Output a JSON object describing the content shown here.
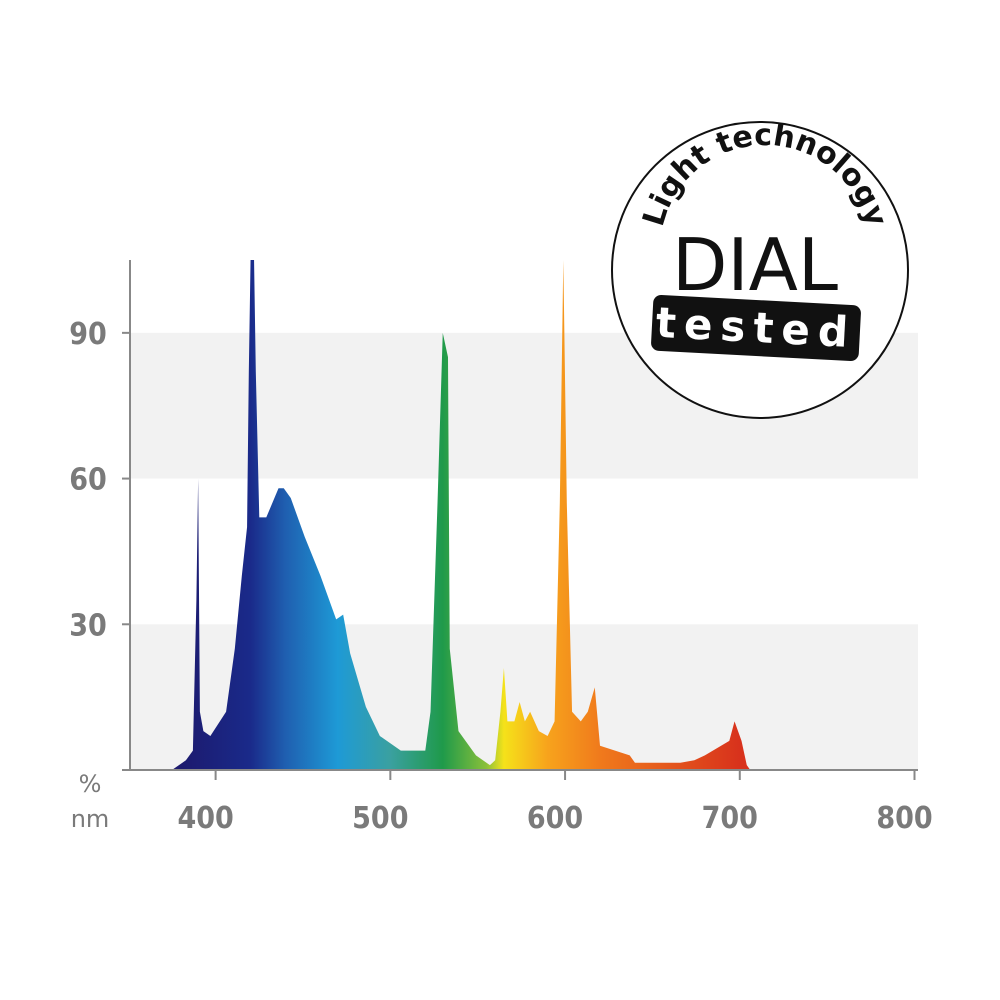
{
  "chart_data": {
    "type": "area",
    "y_label": "%",
    "x_label": "nm",
    "x": [
      375,
      383,
      387,
      389,
      390,
      391,
      393,
      397,
      406,
      411,
      415,
      418,
      419,
      420,
      422,
      423,
      425,
      429,
      436,
      439,
      443,
      451,
      460,
      469,
      473,
      477,
      486,
      494,
      506,
      520,
      523,
      527,
      530,
      533,
      534,
      539,
      549,
      557,
      560,
      563,
      565,
      567,
      571,
      574,
      577,
      580,
      585,
      590,
      594,
      597,
      599,
      601,
      604,
      609,
      613,
      617,
      620,
      637,
      640,
      666,
      674,
      680,
      694,
      697,
      701,
      704,
      706
    ],
    "values": [
      0,
      2,
      4,
      35,
      60,
      12,
      8,
      7,
      12,
      25,
      40,
      50,
      82,
      105,
      105,
      82,
      52,
      52,
      58,
      58,
      56,
      48,
      40,
      31,
      32,
      24,
      13,
      7,
      4,
      4,
      12,
      55,
      90,
      85,
      25,
      8,
      3,
      1,
      2,
      12,
      21,
      10,
      10,
      14,
      10,
      12,
      8,
      7,
      10,
      55,
      105,
      55,
      12,
      10,
      12,
      17,
      5,
      3,
      1.5,
      1.5,
      2,
      3,
      6,
      10,
      6,
      1,
      0
    ],
    "color_stops": [
      {
        "x": 380,
        "color": "#1c1a6e"
      },
      {
        "x": 420,
        "color": "#1a2a8a"
      },
      {
        "x": 440,
        "color": "#1f5fb0"
      },
      {
        "x": 470,
        "color": "#1e9ad6"
      },
      {
        "x": 500,
        "color": "#3aa0a0"
      },
      {
        "x": 530,
        "color": "#1f9a4a"
      },
      {
        "x": 555,
        "color": "#8ac03a"
      },
      {
        "x": 565,
        "color": "#f5e21a"
      },
      {
        "x": 590,
        "color": "#f7a31c"
      },
      {
        "x": 620,
        "color": "#f07a1c"
      },
      {
        "x": 700,
        "color": "#d8321c"
      }
    ],
    "xlim": [
      351,
      802
    ],
    "ylim": [
      0,
      105
    ],
    "xticks": [
      400,
      500,
      600,
      700,
      800
    ],
    "yticks": [
      30,
      60,
      90
    ],
    "grid": true,
    "badge": {
      "arc": "Light technology",
      "title": "DIAL",
      "label": "tested"
    }
  }
}
